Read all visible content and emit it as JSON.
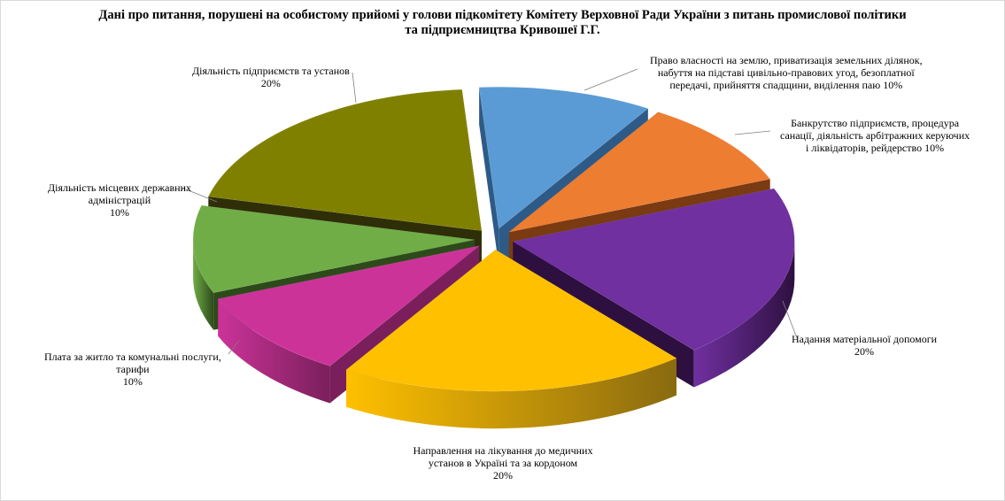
{
  "chart_data": {
    "type": "pie",
    "title": [
      "Дані про питання, порушені на особистому прийомі у голови підкомітету Комітету Верховної Ради України з питань промислової політики",
      "та підприємництва Кривошеї Г.Г."
    ],
    "slices": [
      {
        "label_lines": [
          "Право власності на землю, приватизація земельних  ділянок,",
          "набуття на підставі цивільно-правових  угод, безоплатної",
          "передачі, прийняття спадщини,  виділення паю 10%"
        ],
        "value": 10,
        "color": "#5b9bd5",
        "side_color": "#2e5a87"
      },
      {
        "label_lines": [
          "Банкрутство підприємств,  процедура",
          "санації, діяльність арбітражних керуючих",
          "і ліквідаторів, рейдерство 10%"
        ],
        "value": 10,
        "color": "#ed7d31",
        "side_color": "#7a3a12"
      },
      {
        "label_lines": [
          "Надання матеріальної допомоги",
          "20%"
        ],
        "value": 20,
        "color": "#7030a0",
        "side_color": "#2e1040"
      },
      {
        "label_lines": [
          "Направлення на лікування до медичних",
          "установ в Україні та за кордоном",
          "20%"
        ],
        "value": 20,
        "color": "#ffc000",
        "side_color": "#8a6a10"
      },
      {
        "label_lines": [
          "Плата за житло та комунальні послуги,",
          "тарифи",
          "10%"
        ],
        "value": 10,
        "color": "#cc3399",
        "side_color": "#7a1f5c"
      },
      {
        "label_lines": [
          "Діяльність місцевих  державних",
          "адміністрацій",
          "10%"
        ],
        "value": 10,
        "color": "#70ad47",
        "side_color": "#2d4a1a"
      },
      {
        "label_lines": [
          "Діяльність підприємств  та установ",
          "20%"
        ],
        "value": 20,
        "color": "#808000",
        "side_color": "#2e2e08"
      }
    ]
  }
}
